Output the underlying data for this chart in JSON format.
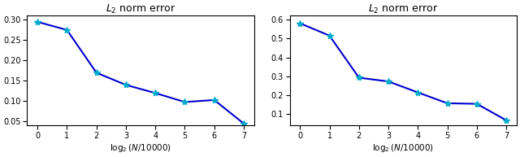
{
  "left_x": [
    0,
    1,
    2,
    3,
    4,
    5,
    6,
    7
  ],
  "left_y": [
    0.295,
    0.275,
    0.17,
    0.14,
    0.12,
    0.098,
    0.103,
    0.045
  ],
  "right_x": [
    0,
    1,
    2,
    3,
    4,
    5,
    6,
    7
  ],
  "right_y": [
    0.58,
    0.515,
    0.293,
    0.273,
    0.215,
    0.158,
    0.155,
    0.068
  ],
  "left_ylim": [
    0.04,
    0.31
  ],
  "right_ylim": [
    0.04,
    0.62
  ],
  "left_yticks": [
    0.05,
    0.1,
    0.15,
    0.2,
    0.25,
    0.3
  ],
  "right_yticks": [
    0.1,
    0.2,
    0.3,
    0.4,
    0.5,
    0.6
  ],
  "xticks": [
    0,
    1,
    2,
    3,
    4,
    5,
    6,
    7
  ],
  "title": "$L_2$ norm error",
  "xlabel": "$\\log_2(N/10000)$",
  "line_color": "#0000cc",
  "marker_color": "#00aacc",
  "marker": "*",
  "markersize": 6,
  "linewidth": 1.5,
  "title_fontsize": 9,
  "label_fontsize": 7.5,
  "tick_fontsize": 7
}
